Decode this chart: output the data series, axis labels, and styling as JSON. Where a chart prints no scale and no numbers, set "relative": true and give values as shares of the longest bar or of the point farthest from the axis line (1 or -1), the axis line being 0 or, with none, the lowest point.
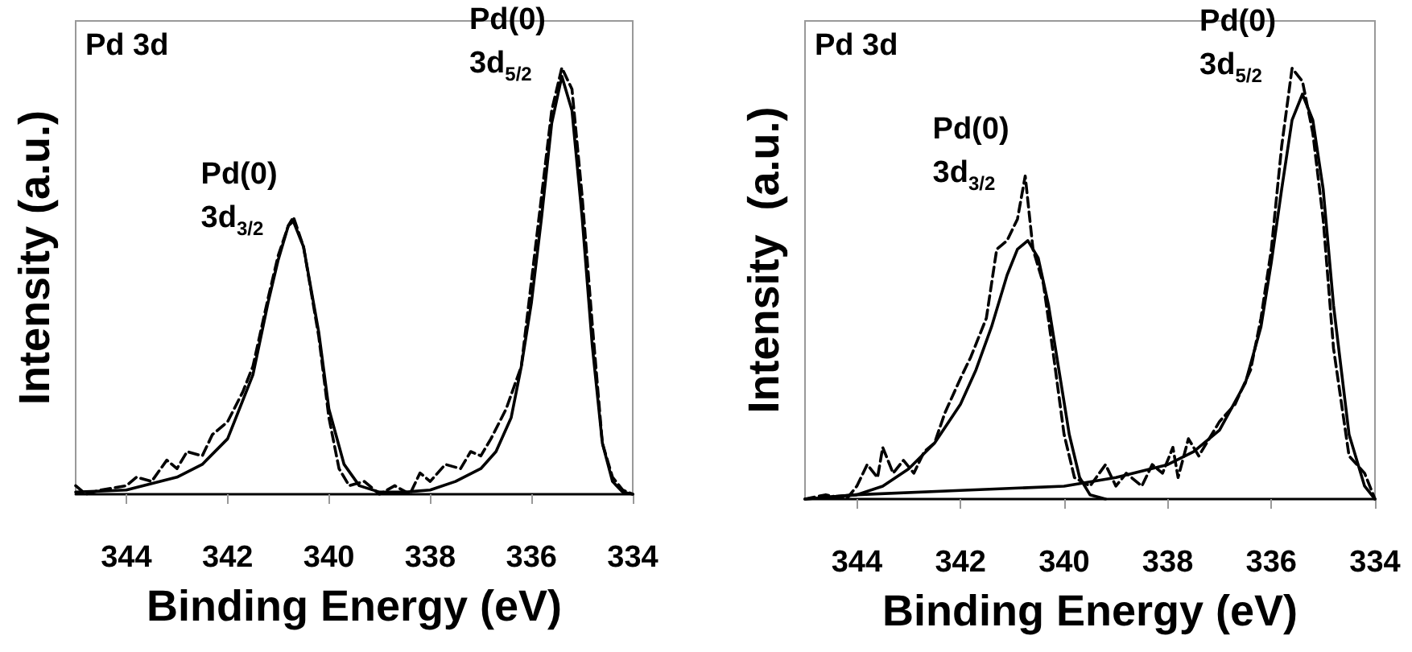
{
  "chart_data": [
    {
      "type": "line",
      "relative": true,
      "xlabel": "Binding Energy (eV)",
      "ylabel": "Intensity (a.u.)",
      "xlim": [
        345,
        334
      ],
      "xticks": [
        344,
        342,
        340,
        338,
        336,
        334
      ],
      "tick_labels": "x",
      "grid": false,
      "marker": "none",
      "annotations": [
        "Pd 3d",
        {
          "text": "Pd(0)\n3d$_{3/2}$",
          "x": 340.7,
          "y": 0.64
        },
        {
          "text": "Pd(0)\n3d$_{5/2}$",
          "x": 335.4,
          "y": 1.0
        }
      ],
      "series": [
        {
          "color": "#000000",
          "line_style": "solid",
          "x": [
            345,
            344,
            343,
            342.5,
            342,
            341.5,
            341.2,
            341,
            340.8,
            340.7,
            340.5,
            340.2,
            340,
            339.7,
            339.4,
            339,
            338.5,
            338,
            337.5,
            337,
            336.7,
            336.4,
            336.2,
            336,
            335.8,
            335.6,
            335.4,
            335.2,
            335,
            334.8,
            334.6,
            334.4,
            334.2,
            334
          ],
          "values": [
            0.005,
            0.01,
            0.04,
            0.07,
            0.13,
            0.28,
            0.45,
            0.55,
            0.63,
            0.64,
            0.58,
            0.38,
            0.2,
            0.07,
            0.02,
            0.005,
            0.005,
            0.01,
            0.03,
            0.06,
            0.1,
            0.18,
            0.3,
            0.45,
            0.65,
            0.87,
            0.98,
            0.9,
            0.65,
            0.35,
            0.12,
            0.03,
            0.005,
            0
          ]
        },
        {
          "color": "#000000",
          "line_style": "dashed",
          "x": [
            345,
            344.8,
            344.5,
            344,
            343.8,
            343.5,
            343.2,
            343,
            342.8,
            342.5,
            342.3,
            342,
            341.7,
            341.5,
            341.2,
            341,
            340.8,
            340.7,
            340.5,
            340.2,
            340,
            339.8,
            339.6,
            339.3,
            339,
            338.7,
            338.4,
            338.2,
            338,
            337.7,
            337.4,
            337.2,
            337,
            336.8,
            336.5,
            336.2,
            336,
            335.8,
            335.6,
            335.4,
            335.2,
            335,
            334.8,
            334.6,
            334.4,
            334.2,
            334
          ],
          "values": [
            0.02,
            0,
            0.01,
            0.02,
            0.04,
            0.03,
            0.08,
            0.06,
            0.1,
            0.09,
            0.14,
            0.17,
            0.24,
            0.3,
            0.46,
            0.56,
            0.63,
            0.65,
            0.58,
            0.37,
            0.18,
            0.06,
            0.02,
            0.03,
            0,
            0.02,
            0,
            0.05,
            0.03,
            0.07,
            0.06,
            0.1,
            0.09,
            0.13,
            0.2,
            0.3,
            0.5,
            0.7,
            0.9,
            1.0,
            0.95,
            0.7,
            0.4,
            0.12,
            0.04,
            0.01,
            0
          ]
        }
      ]
    },
    {
      "type": "line",
      "relative": true,
      "xlabel": "Binding Energy (eV)",
      "ylabel": "Intensity  (a.u.)",
      "xlim": [
        345,
        334
      ],
      "xticks": [
        344,
        342,
        340,
        338,
        336,
        334
      ],
      "tick_labels": "x",
      "grid": false,
      "marker": "none",
      "annotations": [
        "Pd 3d",
        {
          "text": "Pd(0)\n3d$_{3/2}$",
          "x": 340.75,
          "y": 0.75
        },
        {
          "text": "Pd(0)\n3d$_{5/2}$",
          "x": 335.6,
          "y": 1.0
        }
      ],
      "series": [
        {
          "color": "#000000",
          "line_style": "solid",
          "x": [
            345,
            344,
            343.5,
            343,
            342.5,
            342,
            341.7,
            341.4,
            341.1,
            340.9,
            340.7,
            340.5,
            340.3,
            340.1,
            339.9,
            339.7,
            339.5,
            339.2
          ],
          "values": [
            0,
            0.01,
            0.03,
            0.07,
            0.13,
            0.22,
            0.3,
            0.4,
            0.52,
            0.58,
            0.6,
            0.56,
            0.45,
            0.3,
            0.15,
            0.05,
            0.01,
            0
          ]
        },
        {
          "color": "#000000",
          "line_style": "solid",
          "x": [
            345,
            344,
            342,
            340,
            339,
            338,
            337.5,
            337,
            336.5,
            336.2,
            336,
            335.8,
            335.6,
            335.4,
            335.2,
            335,
            334.8,
            334.5,
            334.2,
            334
          ],
          "values": [
            0,
            0.01,
            0.02,
            0.03,
            0.05,
            0.08,
            0.11,
            0.16,
            0.27,
            0.4,
            0.55,
            0.72,
            0.88,
            0.94,
            0.88,
            0.72,
            0.45,
            0.15,
            0.03,
            0
          ]
        },
        {
          "color": "#000000",
          "line_style": "dashed",
          "x": [
            345,
            344.6,
            344.2,
            344,
            343.8,
            343.6,
            343.5,
            343.3,
            343.1,
            342.9,
            342.7,
            342.5,
            342.3,
            342,
            341.8,
            341.5,
            341.3,
            341.1,
            340.9,
            340.75,
            340.6,
            340.4,
            340.2,
            340,
            339.8,
            339.5,
            339.2,
            339,
            338.8,
            338.5,
            338.3,
            338.1,
            337.9,
            337.8,
            337.6,
            337.4,
            337,
            336.7,
            336.4,
            336.2,
            336,
            335.8,
            335.6,
            335.4,
            335.2,
            335,
            334.8,
            334.5,
            334.2,
            334
          ],
          "values": [
            0,
            0.01,
            0,
            0.03,
            0.08,
            0.05,
            0.12,
            0.06,
            0.09,
            0.06,
            0.11,
            0.13,
            0.2,
            0.28,
            0.33,
            0.42,
            0.58,
            0.6,
            0.65,
            0.75,
            0.58,
            0.5,
            0.33,
            0.15,
            0.05,
            0.03,
            0.08,
            0.03,
            0.06,
            0.03,
            0.08,
            0.06,
            0.12,
            0.05,
            0.14,
            0.1,
            0.18,
            0.22,
            0.3,
            0.42,
            0.58,
            0.82,
            1.0,
            0.97,
            0.85,
            0.65,
            0.35,
            0.1,
            0.06,
            0
          ]
        }
      ]
    }
  ]
}
